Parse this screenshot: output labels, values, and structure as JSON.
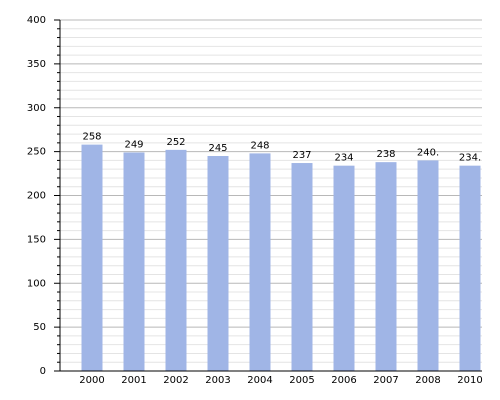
{
  "chart_data": {
    "type": "bar",
    "categories": [
      "2000",
      "2001",
      "2002",
      "2003",
      "2004",
      "2005",
      "2006",
      "2007",
      "2008",
      "2010"
    ],
    "values": [
      258,
      249,
      252,
      245,
      248,
      237,
      234,
      238,
      240,
      234
    ],
    "value_labels": [
      "258",
      "249",
      "252",
      "245",
      "248",
      "237",
      "234",
      "238",
      "240.",
      "234."
    ],
    "color": "#a0b5e6",
    "ylim": [
      0,
      400
    ],
    "yticks": [
      0,
      50,
      100,
      150,
      200,
      250,
      300,
      350,
      400
    ],
    "minor_yticks": [
      10,
      20,
      30,
      40,
      60,
      70,
      80,
      90,
      110,
      120,
      130,
      140,
      160,
      170,
      180,
      190,
      210,
      220,
      230,
      240,
      260,
      270,
      280,
      290,
      310,
      320,
      330,
      340,
      360,
      370,
      380,
      390
    ],
    "grid": true
  }
}
